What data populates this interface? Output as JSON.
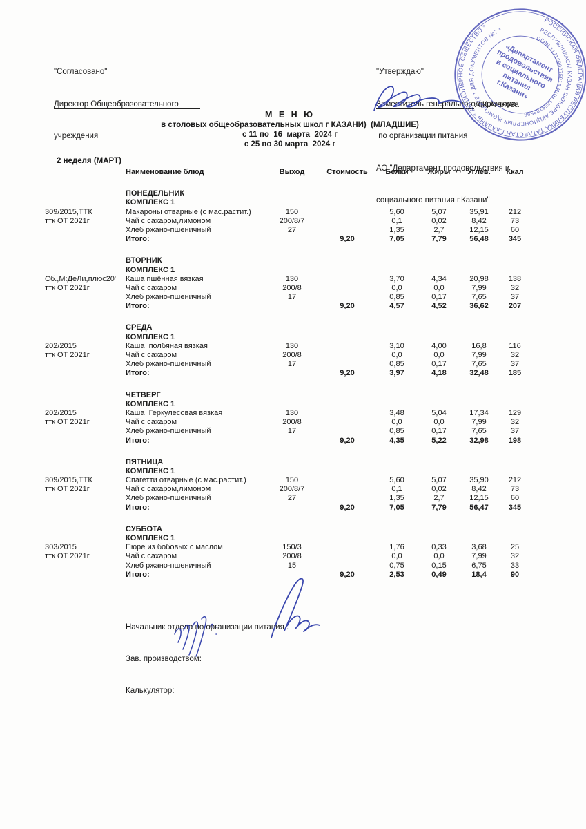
{
  "approvals": {
    "left": {
      "lines": [
        "\"Согласовано\"",
        "Директор Общеобразовательного",
        "учреждения"
      ]
    },
    "right": {
      "lines": [
        "\"Утверждаю\"",
        "Заместитель генерального директора",
        " по организации питания",
        "АО \"Департамент продовольствия и",
        "социального питания г.Казани\""
      ],
      "signer": "А.К.Аганова"
    }
  },
  "title": {
    "line1": "М Е Н Ю",
    "line2": "в столовых общеобразовательных школ г КАЗАНИ)  (МЛАДШИЕ)",
    "line3": "с 11 по  16  марта  2024 г",
    "line4": "с 25 по 30 марта  2024 г"
  },
  "week_label": "2 неделя (МАРТ)",
  "table": {
    "columns": [
      "Наименование блюд",
      "Выход",
      "Стоимость",
      "Белки",
      "Жиры",
      "Углев.",
      "Ккал"
    ],
    "total_label": "Итого:",
    "days": [
      {
        "day": "ПОНЕДЕЛЬНИК",
        "complex": "КОМПЛЕКС 1",
        "codes": [
          "309/2015,ТТК",
          "ттк ОТ 2021г"
        ],
        "rows": [
          {
            "name": "Макароны отварные (с мас.растит.)",
            "out": "150",
            "cost": "",
            "protein": "5,60",
            "fat": "5,07",
            "carb": "35,91",
            "kcal": "212"
          },
          {
            "name": "Чай с сахаром,лимоном",
            "out": "200/8/7",
            "cost": "",
            "protein": "0,1",
            "fat": "0,02",
            "carb": "8,42",
            "kcal": "73"
          },
          {
            "name": "Хлеб ржано-пшеничный",
            "out": "27",
            "cost": "",
            "protein": "1,35",
            "fat": "2,7",
            "carb": "12,15",
            "kcal": "60"
          }
        ],
        "total": {
          "cost": "9,20",
          "protein": "7,05",
          "fat": "7,79",
          "carb": "56,48",
          "kcal": "345"
        }
      },
      {
        "day": "ВТОРНИК",
        "complex": "КОМПЛЕКС 1",
        "codes": [
          "Сб.,М:ДеЛи,плюс20'",
          "ттк ОТ 2021г"
        ],
        "rows": [
          {
            "name": "Каша пшённая вязкая",
            "out": "130",
            "cost": "",
            "protein": "3,70",
            "fat": "4,34",
            "carb": "20,98",
            "kcal": "138"
          },
          {
            "name": "Чай с сахаром",
            "out": "200/8",
            "cost": "",
            "protein": "0,0",
            "fat": "0,0",
            "carb": "7,99",
            "kcal": "32"
          },
          {
            "name": "Хлеб ржано-пшеничный",
            "out": "17",
            "cost": "",
            "protein": "0,85",
            "fat": "0,17",
            "carb": "7,65",
            "kcal": "37"
          }
        ],
        "total": {
          "cost": "9,20",
          "protein": "4,57",
          "fat": "4,52",
          "carb": "36,62",
          "kcal": "207"
        }
      },
      {
        "day": "СРЕДА",
        "complex": "КОМПЛЕКС 1",
        "codes": [
          "202/2015",
          "ттк ОТ 2021г"
        ],
        "rows": [
          {
            "name": "Каша  полбяная вязкая",
            "out": "130",
            "cost": "",
            "protein": "3,10",
            "fat": "4,00",
            "carb": "16,8",
            "kcal": "116"
          },
          {
            "name": "Чай с сахаром",
            "out": "200/8",
            "cost": "",
            "protein": "0,0",
            "fat": "0,0",
            "carb": "7,99",
            "kcal": "32"
          },
          {
            "name": "Хлеб ржано-пшеничный",
            "out": "17",
            "cost": "",
            "protein": "0,85",
            "fat": "0,17",
            "carb": "7,65",
            "kcal": "37"
          }
        ],
        "total": {
          "cost": "9,20",
          "protein": "3,97",
          "fat": "4,18",
          "carb": "32,48",
          "kcal": "185"
        }
      },
      {
        "day": "ЧЕТВЕРГ",
        "complex": "КОМПЛЕКС 1",
        "codes": [
          "202/2015",
          "ттк ОТ 2021г"
        ],
        "rows": [
          {
            "name": "Каша  Геркулесовая вязкая",
            "out": "130",
            "cost": "",
            "protein": "3,48",
            "fat": "5,04",
            "carb": "17,34",
            "kcal": "129"
          },
          {
            "name": "Чай с сахаром",
            "out": "200/8",
            "cost": "",
            "protein": "0,0",
            "fat": "0,0",
            "carb": "7,99",
            "kcal": "32"
          },
          {
            "name": "Хлеб ржано-пшеничный",
            "out": "17",
            "cost": "",
            "protein": "0,85",
            "fat": "0,17",
            "carb": "7,65",
            "kcal": "37"
          }
        ],
        "total": {
          "cost": "9,20",
          "protein": "4,35",
          "fat": "5,22",
          "carb": "32,98",
          "kcal": "198"
        }
      },
      {
        "day": "ПЯТНИЦА",
        "complex": "КОМПЛЕКС 1",
        "codes": [
          "309/2015,ТТК",
          "ттк ОТ 2021г"
        ],
        "rows": [
          {
            "name": "Спагетти отварные (с мас.растит.)",
            "out": "150",
            "cost": "",
            "protein": "5,60",
            "fat": "5,07",
            "carb": "35,90",
            "kcal": "212"
          },
          {
            "name": "Чай с сахаром,лимоном",
            "out": "200/8/7",
            "cost": "",
            "protein": "0,1",
            "fat": "0,02",
            "carb": "8,42",
            "kcal": "73"
          },
          {
            "name": "Хлеб ржано-пшеничный",
            "out": "27",
            "cost": "",
            "protein": "1,35",
            "fat": "2,7",
            "carb": "12,15",
            "kcal": "60"
          }
        ],
        "total": {
          "cost": "9,20",
          "protein": "7,05",
          "fat": "7,79",
          "carb": "56,47",
          "kcal": "345"
        }
      },
      {
        "day": "СУББОТА",
        "complex": "КОМПЛЕКС 1",
        "codes": [
          "303/2015",
          "ттк ОТ 2021г"
        ],
        "rows": [
          {
            "name": "Пюре из бобовых с маслом",
            "out": "150/3",
            "cost": "",
            "protein": "1,76",
            "fat": "0,33",
            "carb": "3,68",
            "kcal": "25"
          },
          {
            "name": "Чай с сахаром",
            "out": "200/8",
            "cost": "",
            "protein": "0,0",
            "fat": "0,0",
            "carb": "7,99",
            "kcal": "32"
          },
          {
            "name": "Хлеб ржано-пшеничный",
            "out": "15",
            "cost": "",
            "protein": "0,75",
            "fat": "0,15",
            "carb": "6,75",
            "kcal": "33"
          }
        ],
        "total": {
          "cost": "9,20",
          "protein": "2,53",
          "fat": "0,49",
          "carb": "18,4",
          "kcal": "90"
        }
      }
    ]
  },
  "footer": {
    "lines": [
      "Начальник отдела по организации питания :",
      "Зав. производством:",
      "Калькулятор:"
    ]
  },
  "stamp": {
    "color": "#4a4fb5",
    "outer_ring": "РОССИЙСКАЯ ФЕДЕРАЦИЯ  РЕСПУБЛИКА ТАТАРСТАН  Г.КАЗАНЬ  *  АКЦИОНЕРНОЕ ОБЩЕСТВО  *",
    "middle_ring": "РЕСПУБЛИКАСЫ КАЗАН ШӘҺӘРЕ АКЦИОНЕРЛЫК ҖӘМГЫЯТЕ  *  ДЛЯ ДОКУМЕНТОВ №7  *",
    "inner_ring": "ОГРН 1171690075919 ИНН 1659183598",
    "center_lines": [
      "«Департамент",
      "продовольствия",
      "и социального",
      "питания",
      "г.Казани»"
    ]
  }
}
